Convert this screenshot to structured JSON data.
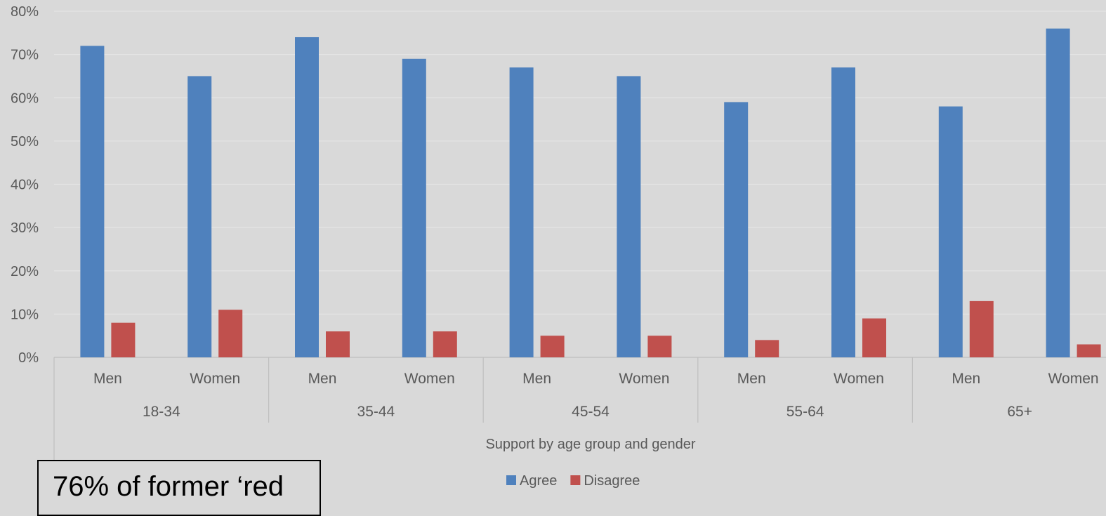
{
  "chart_data": {
    "type": "bar",
    "title": "",
    "xlabel": "Support by age group and gender",
    "ylabel": "",
    "ylim": [
      0,
      80
    ],
    "yticks": [
      "0%",
      "10%",
      "20%",
      "30%",
      "40%",
      "50%",
      "60%",
      "70%",
      "80%"
    ],
    "groups": [
      "18-34",
      "35-44",
      "45-54",
      "55-64",
      "65+"
    ],
    "categories": [
      "Men",
      "Women",
      "Men",
      "Women",
      "Men",
      "Women",
      "Men",
      "Women",
      "Men",
      "Women"
    ],
    "series": [
      {
        "name": "Agree",
        "color": "#4f81bd",
        "values": [
          72,
          65,
          74,
          69,
          67,
          65,
          59,
          67,
          58,
          76
        ]
      },
      {
        "name": "Disagree",
        "color": "#c0504d",
        "values": [
          8,
          11,
          6,
          6,
          5,
          5,
          4,
          9,
          13,
          3
        ]
      }
    ],
    "grid": true,
    "legend_position": "bottom"
  },
  "annotation": {
    "text": "76% of former ‘red"
  }
}
